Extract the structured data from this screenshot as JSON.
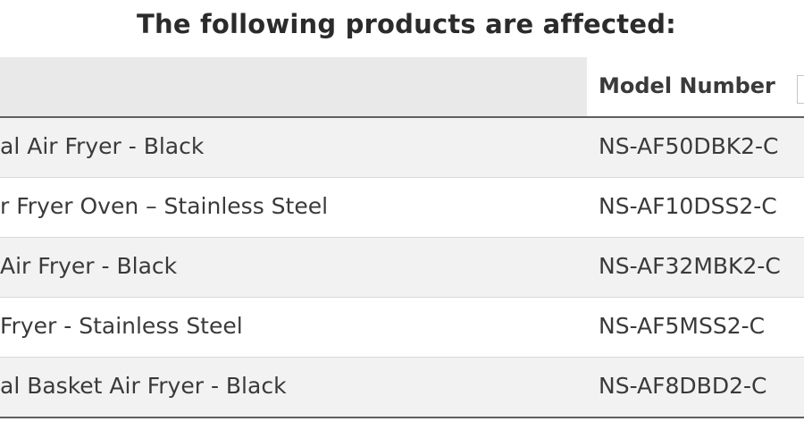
{
  "heading": "The following products are affected:",
  "table": {
    "columns": [
      "",
      "Model Number"
    ],
    "rows": [
      {
        "name": "al Air Fryer - Black",
        "model": "NS-AF50DBK2-C"
      },
      {
        "name": "r Fryer Oven – Stainless Steel",
        "model": "NS-AF10DSS2-C"
      },
      {
        "name": "Air Fryer - Black",
        "model": "NS-AF32MBK2-C"
      },
      {
        "name": "Fryer - Stainless Steel",
        "model": "NS-AF5MSS2-C"
      },
      {
        "name": "al Basket Air Fryer - Black",
        "model": "NS-AF8DBD2-C"
      }
    ]
  },
  "colors": {
    "header_bg": "#e9e9e9",
    "stripe_bg": "#f2f2f2",
    "text": "#3a3a3a",
    "rule": "#5f5f5f"
  }
}
